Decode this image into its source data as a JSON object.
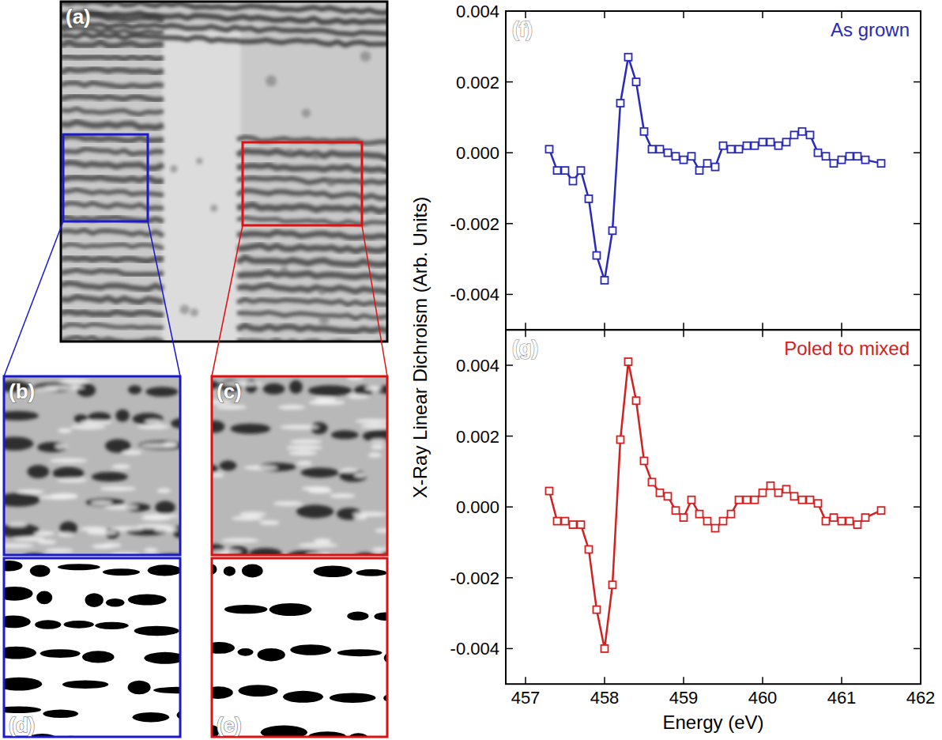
{
  "figure": {
    "images": [
      {
        "label": "(a)",
        "color": "#000000"
      },
      {
        "label": "(b)",
        "color": "#1a1acc"
      },
      {
        "label": "(c)",
        "color": "#dd1111"
      },
      {
        "label": "(d)",
        "color": "#1a1acc"
      },
      {
        "label": "(e)",
        "color": "#dd1111"
      }
    ]
  },
  "chart_data": [
    {
      "type": "line",
      "label": "(f)",
      "title": "As grown",
      "ylabel": "X-Ray Linear Dichroism (Arb. Units)",
      "tick_labels": "y",
      "xlim": [
        456.75,
        462
      ],
      "xticks": [
        457,
        458,
        459,
        460,
        461,
        462
      ],
      "ylim": [
        -0.005,
        0.004
      ],
      "yticks": [
        -0.004,
        -0.002,
        {
          "value": 0,
          "label": "0.000"
        },
        0.002,
        0.004
      ],
      "x": [
        457.3,
        457.4,
        457.5,
        457.6,
        457.7,
        457.8,
        457.9,
        458.0,
        458.1,
        458.2,
        458.3,
        458.4,
        458.5,
        458.6,
        458.7,
        458.8,
        458.9,
        459.0,
        459.1,
        459.2,
        459.3,
        459.4,
        459.5,
        459.6,
        459.7,
        459.8,
        459.9,
        460.0,
        460.1,
        460.2,
        460.3,
        460.4,
        460.5,
        460.6,
        460.7,
        460.8,
        460.9,
        461.0,
        461.1,
        461.2,
        461.3,
        461.5
      ],
      "series": [
        {
          "color": "#2a2ab8",
          "marker": "square",
          "values": [
            0.0001,
            -0.0005,
            -0.0005,
            -0.0008,
            -0.0005,
            -0.0013,
            -0.0029,
            -0.0036,
            -0.0022,
            0.0014,
            0.0027,
            0.002,
            0.0006,
            0.0001,
            0.0001,
            0.0,
            -0.0001,
            -0.0002,
            -0.0001,
            -0.0005,
            -0.0003,
            -0.0004,
            0.0002,
            0.0001,
            0.0001,
            0.0002,
            0.0002,
            0.0003,
            0.0003,
            0.0002,
            0.0003,
            0.0005,
            0.0006,
            0.0005,
            0.0,
            -0.0001,
            -0.0003,
            -0.0002,
            -0.0001,
            -0.0001,
            -0.0002,
            -0.0003
          ]
        }
      ]
    },
    {
      "type": "line",
      "label": "(g)",
      "title": "Poled to mixed",
      "xlabel": "Energy (eV)",
      "xlim": [
        456.75,
        462
      ],
      "xticks": [
        457,
        458,
        459,
        460,
        461,
        462
      ],
      "ylim": [
        -0.005,
        0.005
      ],
      "yticks": [
        -0.004,
        -0.002,
        {
          "value": 0,
          "label": "0.000"
        },
        0.002,
        0.004
      ],
      "x": [
        457.3,
        457.4,
        457.5,
        457.6,
        457.7,
        457.8,
        457.9,
        458.0,
        458.1,
        458.2,
        458.3,
        458.4,
        458.5,
        458.6,
        458.7,
        458.8,
        458.9,
        459.0,
        459.1,
        459.2,
        459.3,
        459.4,
        459.5,
        459.6,
        459.7,
        459.8,
        459.9,
        460.0,
        460.1,
        460.2,
        460.3,
        460.4,
        460.5,
        460.6,
        460.7,
        460.8,
        460.9,
        461.0,
        461.1,
        461.2,
        461.3,
        461.5
      ],
      "series": [
        {
          "color": "#d42020",
          "marker": "square",
          "values": [
            0.00045,
            -0.0004,
            -0.0004,
            -0.0005,
            -0.0005,
            -0.0012,
            -0.0029,
            -0.004,
            -0.0022,
            0.0019,
            0.0041,
            0.003,
            0.0013,
            0.0007,
            0.0004,
            0.0003,
            -0.0001,
            -0.0003,
            0.0002,
            -0.0002,
            -0.0004,
            -0.0006,
            -0.0004,
            -0.0002,
            0.0002,
            0.0002,
            0.0002,
            0.0004,
            0.0006,
            0.0004,
            0.0005,
            0.0003,
            0.0002,
            0.0002,
            0.0001,
            -0.0004,
            -0.0003,
            -0.0004,
            -0.0004,
            -0.0005,
            -0.0003,
            -0.0001
          ]
        }
      ]
    }
  ]
}
